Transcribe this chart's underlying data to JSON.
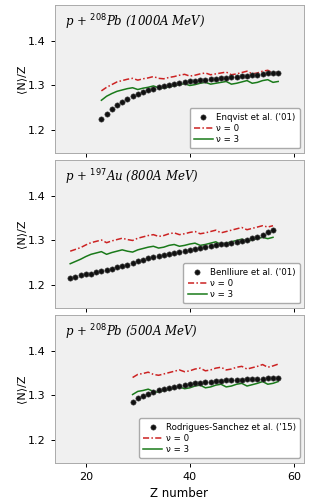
{
  "panels": [
    {
      "title_parts": [
        "p + $^{208}$Pb (1000",
        "A",
        " MeV)"
      ],
      "title": "p + $^{208}$Pb (1000A MeV)",
      "legend_label": "Enqvist et al. ('01)",
      "exp_z": [
        23,
        24,
        25,
        26,
        27,
        28,
        29,
        30,
        31,
        32,
        33,
        34,
        35,
        36,
        37,
        38,
        39,
        40,
        41,
        42,
        43,
        44,
        45,
        46,
        47,
        48,
        49,
        50,
        51,
        52,
        53,
        54,
        55,
        56,
        57
      ],
      "exp_y": [
        1.224,
        1.236,
        1.248,
        1.257,
        1.263,
        1.269,
        1.276,
        1.281,
        1.285,
        1.289,
        1.292,
        1.296,
        1.298,
        1.301,
        1.303,
        1.305,
        1.307,
        1.309,
        1.31,
        1.312,
        1.313,
        1.314,
        1.315,
        1.316,
        1.317,
        1.318,
        1.32,
        1.321,
        1.322,
        1.323,
        1.324,
        1.325,
        1.327,
        1.328,
        1.329
      ],
      "nu0_z": [
        23,
        24,
        25,
        26,
        27,
        28,
        29,
        30,
        31,
        32,
        33,
        34,
        35,
        36,
        37,
        38,
        39,
        40,
        41,
        42,
        43,
        44,
        45,
        46,
        47,
        48,
        49,
        50,
        51,
        52,
        53,
        54,
        55,
        56,
        57
      ],
      "nu0_y": [
        1.288,
        1.296,
        1.302,
        1.308,
        1.311,
        1.314,
        1.316,
        1.312,
        1.315,
        1.317,
        1.32,
        1.316,
        1.315,
        1.318,
        1.32,
        1.323,
        1.325,
        1.321,
        1.323,
        1.326,
        1.328,
        1.324,
        1.326,
        1.328,
        1.33,
        1.324,
        1.326,
        1.329,
        1.332,
        1.326,
        1.328,
        1.332,
        1.334,
        1.328,
        1.33
      ],
      "nu3_z": [
        23,
        24,
        25,
        26,
        27,
        28,
        29,
        30,
        31,
        32,
        33,
        34,
        35,
        36,
        37,
        38,
        39,
        40,
        41,
        42,
        43,
        44,
        45,
        46,
        47,
        48,
        49,
        50,
        51,
        52,
        53,
        54,
        55,
        56,
        57
      ],
      "nu3_y": [
        1.267,
        1.276,
        1.282,
        1.287,
        1.29,
        1.293,
        1.295,
        1.291,
        1.294,
        1.296,
        1.299,
        1.295,
        1.294,
        1.297,
        1.299,
        1.302,
        1.304,
        1.3,
        1.302,
        1.305,
        1.307,
        1.303,
        1.305,
        1.307,
        1.309,
        1.303,
        1.305,
        1.308,
        1.311,
        1.305,
        1.307,
        1.311,
        1.313,
        1.307,
        1.309
      ],
      "xlim": [
        14,
        62
      ],
      "ylim": [
        1.15,
        1.48
      ],
      "yticks": [
        1.2,
        1.3,
        1.4
      ],
      "xticks": [
        20,
        40,
        60
      ]
    },
    {
      "title": "p + $^{197}$Au (800A MeV)",
      "legend_label": "Benlliure et al. ('01)",
      "exp_z": [
        17,
        18,
        19,
        20,
        21,
        22,
        23,
        24,
        25,
        26,
        27,
        28,
        29,
        30,
        31,
        32,
        33,
        34,
        35,
        36,
        37,
        38,
        39,
        40,
        41,
        42,
        43,
        44,
        45,
        46,
        47,
        48,
        49,
        50,
        51,
        52,
        53,
        54,
        55,
        56
      ],
      "exp_y": [
        1.215,
        1.219,
        1.222,
        1.224,
        1.226,
        1.229,
        1.231,
        1.234,
        1.237,
        1.24,
        1.243,
        1.246,
        1.25,
        1.254,
        1.257,
        1.26,
        1.263,
        1.265,
        1.268,
        1.27,
        1.272,
        1.275,
        1.277,
        1.279,
        1.281,
        1.283,
        1.285,
        1.287,
        1.289,
        1.291,
        1.293,
        1.295,
        1.297,
        1.299,
        1.302,
        1.305,
        1.308,
        1.312,
        1.318,
        1.324
      ],
      "nu0_z": [
        17,
        18,
        19,
        20,
        21,
        22,
        23,
        24,
        25,
        26,
        27,
        28,
        29,
        30,
        31,
        32,
        33,
        34,
        35,
        36,
        37,
        38,
        39,
        40,
        41,
        42,
        43,
        44,
        45,
        46,
        47,
        48,
        49,
        50,
        51,
        52,
        53,
        54,
        55,
        56
      ],
      "nu0_y": [
        1.276,
        1.28,
        1.284,
        1.29,
        1.295,
        1.298,
        1.301,
        1.295,
        1.299,
        1.302,
        1.305,
        1.302,
        1.3,
        1.305,
        1.308,
        1.311,
        1.313,
        1.309,
        1.311,
        1.315,
        1.317,
        1.313,
        1.315,
        1.318,
        1.32,
        1.315,
        1.317,
        1.32,
        1.323,
        1.317,
        1.32,
        1.323,
        1.326,
        1.329,
        1.324,
        1.327,
        1.33,
        1.333,
        1.33,
        1.333
      ],
      "nu3_z": [
        17,
        18,
        19,
        20,
        21,
        22,
        23,
        24,
        25,
        26,
        27,
        28,
        29,
        30,
        31,
        32,
        33,
        34,
        35,
        36,
        37,
        38,
        39,
        40,
        41,
        42,
        43,
        44,
        45,
        46,
        47,
        48,
        49,
        50,
        51,
        52,
        53,
        54,
        55,
        56
      ],
      "nu3_y": [
        1.248,
        1.253,
        1.258,
        1.264,
        1.269,
        1.272,
        1.275,
        1.269,
        1.273,
        1.276,
        1.279,
        1.276,
        1.274,
        1.279,
        1.282,
        1.285,
        1.287,
        1.283,
        1.285,
        1.289,
        1.291,
        1.287,
        1.289,
        1.292,
        1.294,
        1.289,
        1.291,
        1.294,
        1.297,
        1.291,
        1.294,
        1.297,
        1.3,
        1.303,
        1.298,
        1.301,
        1.304,
        1.307,
        1.304,
        1.307
      ],
      "xlim": [
        14,
        62
      ],
      "ylim": [
        1.15,
        1.48
      ],
      "yticks": [
        1.2,
        1.3,
        1.4
      ],
      "xticks": [
        20,
        40,
        60
      ]
    },
    {
      "title": "p + $^{208}$Pb (500A MeV)",
      "legend_label": "Rodrigues-Sanchez et al. ('15)",
      "exp_z": [
        29,
        30,
        31,
        32,
        33,
        34,
        35,
        36,
        37,
        38,
        39,
        40,
        41,
        42,
        43,
        44,
        45,
        46,
        47,
        48,
        49,
        50,
        51,
        52,
        53,
        54,
        55,
        56,
        57
      ],
      "exp_y": [
        1.285,
        1.294,
        1.299,
        1.303,
        1.307,
        1.311,
        1.314,
        1.317,
        1.319,
        1.321,
        1.323,
        1.325,
        1.327,
        1.328,
        1.33,
        1.331,
        1.332,
        1.333,
        1.334,
        1.334,
        1.335,
        1.335,
        1.336,
        1.336,
        1.337,
        1.337,
        1.338,
        1.338,
        1.338
      ],
      "nu0_z": [
        29,
        30,
        31,
        32,
        33,
        34,
        35,
        36,
        37,
        38,
        39,
        40,
        41,
        42,
        43,
        44,
        45,
        46,
        47,
        48,
        49,
        50,
        51,
        52,
        53,
        54,
        55,
        56,
        57
      ],
      "nu0_y": [
        1.34,
        1.347,
        1.349,
        1.352,
        1.347,
        1.345,
        1.348,
        1.351,
        1.354,
        1.357,
        1.353,
        1.355,
        1.359,
        1.361,
        1.355,
        1.357,
        1.361,
        1.363,
        1.357,
        1.359,
        1.363,
        1.365,
        1.359,
        1.362,
        1.365,
        1.369,
        1.363,
        1.366,
        1.37
      ],
      "nu3_z": [
        29,
        30,
        31,
        32,
        33,
        34,
        35,
        36,
        37,
        38,
        39,
        40,
        41,
        42,
        43,
        44,
        45,
        46,
        47,
        48,
        49,
        50,
        51,
        52,
        53,
        54,
        55,
        56,
        57
      ],
      "nu3_y": [
        1.302,
        1.309,
        1.311,
        1.314,
        1.309,
        1.307,
        1.311,
        1.313,
        1.316,
        1.319,
        1.315,
        1.317,
        1.321,
        1.323,
        1.317,
        1.319,
        1.323,
        1.325,
        1.319,
        1.321,
        1.325,
        1.327,
        1.321,
        1.324,
        1.327,
        1.331,
        1.325,
        1.327,
        1.331
      ],
      "xlim": [
        14,
        62
      ],
      "ylim": [
        1.15,
        1.48
      ],
      "yticks": [
        1.2,
        1.3,
        1.4
      ],
      "xticks": [
        20,
        40,
        60
      ]
    }
  ],
  "exp_color": "#111111",
  "nu0_color": "#cc2222",
  "nu3_color": "#1a7a1a",
  "bg_color": "#ffffff",
  "panel_bg": "#f0f0f0",
  "xlabel": "Z number",
  "ylabel": "⟨N⟩/Z",
  "nu0_label": "ν = 0",
  "nu3_label": "ν = 3",
  "fig_width": 3.12,
  "fig_height": 5.0
}
